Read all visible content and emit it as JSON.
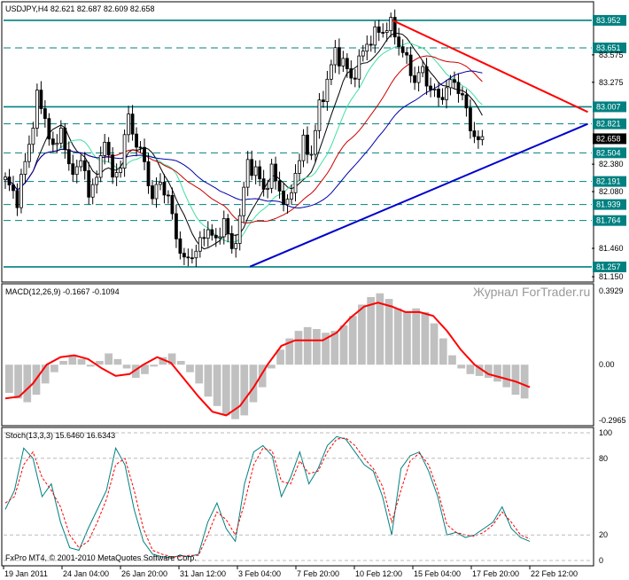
{
  "colors": {
    "background": "#ffffff",
    "frame": "#000000",
    "candle": "#000000",
    "level_solid": "#008080",
    "level_dashed": "#008080",
    "trend_up": "#0000cc",
    "trend_down": "#ff0000",
    "ma_black": "#000000",
    "ma_green": "#40e0a0",
    "ma_red": "#cc0000",
    "ma_blue": "#0000aa",
    "macd_hist": "#c0c0c0",
    "macd_signal": "#ff0000",
    "stoch_main": "#008080",
    "stoch_signal": "#ff0000",
    "label_teal": "#008080",
    "label_black": "#000000"
  },
  "header": {
    "main": "USDJPY,H4  82.621 82.687 82.609 82.658",
    "macd": "MACD(12,26,9) -0.1667 -0.1094",
    "stoch": "Stoch(13,3,3) 15.6460 16.6343"
  },
  "watermark": "Журнал ForTrader.ru",
  "footer": "FxPro MT4, © 2001-2010 MetaQuotes Software Corp.",
  "chart_data": [
    {
      "type": "candlestick",
      "symbol": "USDJPY",
      "timeframe": "H4",
      "ylim": [
        81.15,
        84.0
      ],
      "x_labels": [
        "19 Jan 2011",
        "24 Jan 04:00",
        "26 Jan 20:00",
        "31 Jan 12:00",
        "3 Feb 04:00",
        "7 Feb 20:00",
        "10 Feb 12:00",
        "15 Feb 04:00",
        "17 Feb 20:00",
        "22 Feb 12:00"
      ],
      "price_axis_ticks": [
        "83.575",
        "83.275",
        "82.380",
        "82.080",
        "81.460",
        "81.150"
      ],
      "price_labels": [
        {
          "value": 83.952,
          "label": "83.952",
          "style": "teal"
        },
        {
          "value": 83.651,
          "label": "83.651",
          "style": "teal"
        },
        {
          "value": 83.007,
          "label": "83.007",
          "style": "teal"
        },
        {
          "value": 82.821,
          "label": "82.821",
          "style": "teal"
        },
        {
          "value": 82.658,
          "label": "82.658",
          "style": "black"
        },
        {
          "value": 82.504,
          "label": "82.504",
          "style": "teal"
        },
        {
          "value": 82.191,
          "label": "82.191",
          "style": "teal"
        },
        {
          "value": 81.939,
          "label": "81.939",
          "style": "teal"
        },
        {
          "value": 81.764,
          "label": "81.764",
          "style": "teal"
        },
        {
          "value": 81.257,
          "label": "81.257",
          "style": "teal"
        }
      ],
      "levels": [
        {
          "value": 83.952,
          "style": "solid"
        },
        {
          "value": 83.651,
          "style": "dashed"
        },
        {
          "value": 83.007,
          "style": "solid"
        },
        {
          "value": 82.821,
          "style": "dashed"
        },
        {
          "value": 82.504,
          "style": "dashed"
        },
        {
          "value": 82.191,
          "style": "dashed"
        },
        {
          "value": 81.939,
          "style": "dashed"
        },
        {
          "value": 81.764,
          "style": "dashed"
        },
        {
          "value": 81.257,
          "style": "solid"
        }
      ],
      "close_path": [
        [
          0,
          82.2
        ],
        [
          3,
          82.0
        ],
        [
          6,
          82.6
        ],
        [
          8,
          83.1
        ],
        [
          10,
          82.9
        ],
        [
          12,
          82.5
        ],
        [
          14,
          82.8
        ],
        [
          16,
          82.3
        ],
        [
          19,
          82.4
        ],
        [
          21,
          82.1
        ],
        [
          23,
          82.2
        ],
        [
          25,
          82.7
        ],
        [
          27,
          82.2
        ],
        [
          29,
          82.4
        ],
        [
          31,
          82.9
        ],
        [
          33,
          82.6
        ],
        [
          35,
          82.4
        ],
        [
          37,
          82.0
        ],
        [
          39,
          82.2
        ],
        [
          41,
          82.0
        ],
        [
          43,
          81.6
        ],
        [
          45,
          81.3
        ],
        [
          47,
          81.4
        ],
        [
          49,
          81.5
        ],
        [
          51,
          81.7
        ],
        [
          53,
          81.5
        ],
        [
          55,
          81.8
        ],
        [
          57,
          81.4
        ],
        [
          59,
          81.8
        ],
        [
          61,
          82.4
        ],
        [
          63,
          82.3
        ],
        [
          65,
          82.1
        ],
        [
          67,
          82.3
        ],
        [
          69,
          82.1
        ],
        [
          71,
          81.9
        ],
        [
          73,
          82.3
        ],
        [
          75,
          82.6
        ],
        [
          77,
          82.5
        ],
        [
          79,
          83.0
        ],
        [
          81,
          83.3
        ],
        [
          83,
          83.6
        ],
        [
          85,
          83.5
        ],
        [
          87,
          83.3
        ],
        [
          89,
          83.5
        ],
        [
          91,
          83.7
        ],
        [
          93,
          83.8
        ],
        [
          95,
          83.85
        ],
        [
          97,
          83.9
        ],
        [
          99,
          83.7
        ],
        [
          101,
          83.5
        ],
        [
          103,
          83.3
        ],
        [
          105,
          83.4
        ],
        [
          107,
          83.2
        ],
        [
          109,
          83.1
        ],
        [
          111,
          83.2
        ],
        [
          113,
          83.3
        ],
        [
          115,
          83.1
        ],
        [
          117,
          82.8
        ],
        [
          119,
          82.6
        ],
        [
          120,
          82.658
        ]
      ],
      "trendlines": [
        {
          "name": "support",
          "from": [
            62,
            81.26
          ],
          "to": [
            147,
            82.82
          ],
          "color": "blue"
        },
        {
          "name": "resistance",
          "from": [
            98,
            83.95
          ],
          "to": [
            147,
            82.95
          ],
          "color": "red"
        }
      ]
    },
    {
      "type": "histogram+line",
      "name": "MACD(12,26,9)",
      "ylim": [
        -0.2965,
        0.3929
      ],
      "ticks": [
        "0.3929",
        "0.00",
        "-0.2965"
      ],
      "histogram": [
        -0.15,
        -0.18,
        -0.2,
        -0.16,
        -0.1,
        -0.04,
        0.02,
        0.05,
        0.03,
        -0.01,
        0.02,
        0.06,
        0.03,
        -0.02,
        -0.07,
        -0.05,
        -0.01,
        0.04,
        0.06,
        0.02,
        -0.04,
        -0.1,
        -0.17,
        -0.22,
        -0.27,
        -0.29,
        -0.27,
        -0.2,
        -0.12,
        -0.02,
        0.08,
        0.14,
        0.18,
        0.2,
        0.19,
        0.17,
        0.18,
        0.21,
        0.26,
        0.32,
        0.36,
        0.38,
        0.35,
        0.3,
        0.28,
        0.3,
        0.28,
        0.22,
        0.14,
        0.05,
        -0.02,
        -0.05,
        -0.06,
        -0.07,
        -0.09,
        -0.12,
        -0.16,
        -0.18
      ],
      "signal": [
        -0.18,
        -0.17,
        -0.1,
        0.0,
        0.04,
        0.05,
        0.03,
        -0.02,
        -0.06,
        -0.05,
        0.0,
        0.04,
        0.01,
        -0.08,
        -0.17,
        -0.25,
        -0.27,
        -0.22,
        -0.12,
        0.0,
        0.1,
        0.13,
        0.13,
        0.13,
        0.17,
        0.25,
        0.31,
        0.33,
        0.31,
        0.28,
        0.28,
        0.26,
        0.18,
        0.08,
        0.0,
        -0.05,
        -0.07,
        -0.09,
        -0.12
      ]
    },
    {
      "type": "line",
      "name": "Stoch(13,3,3)",
      "ylim": [
        0,
        100
      ],
      "ticks": [
        "100",
        "80",
        "20",
        "0"
      ],
      "series": [
        {
          "name": "main",
          "values": [
            40,
            55,
            88,
            80,
            50,
            60,
            30,
            10,
            8,
            25,
            40,
            55,
            88,
            75,
            40,
            15,
            5,
            3,
            2,
            4,
            3,
            5,
            30,
            45,
            25,
            15,
            60,
            85,
            90,
            82,
            50,
            65,
            85,
            60,
            72,
            90,
            97,
            95,
            85,
            75,
            70,
            50,
            20,
            72,
            82,
            85,
            70,
            50,
            20,
            22,
            18,
            20,
            25,
            30,
            42,
            25,
            18,
            15
          ]
        },
        {
          "name": "signal",
          "values": [
            45,
            50,
            75,
            85,
            65,
            55,
            42,
            20,
            10,
            15,
            30,
            48,
            75,
            80,
            55,
            25,
            8,
            5,
            3,
            3,
            4,
            4,
            20,
            38,
            32,
            20,
            45,
            75,
            88,
            86,
            62,
            60,
            78,
            68,
            70,
            85,
            95,
            96,
            90,
            80,
            72,
            58,
            30,
            55,
            78,
            84,
            75,
            55,
            28,
            22,
            20,
            19,
            22,
            28,
            38,
            30,
            20,
            17
          ]
        }
      ]
    }
  ]
}
